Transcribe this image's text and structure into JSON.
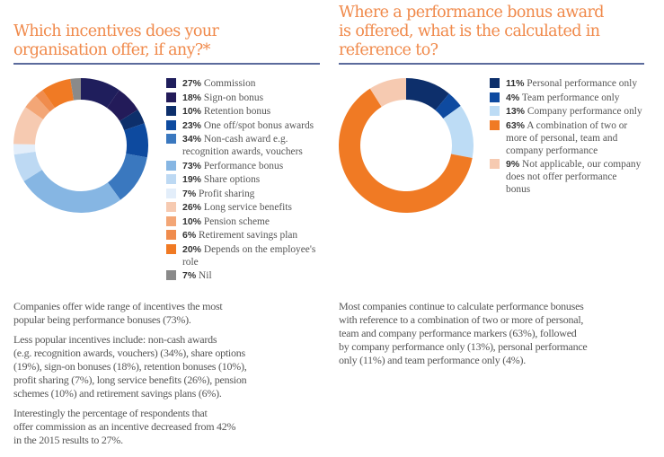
{
  "left": {
    "title_lines": [
      "Which incentives does your",
      "organisation offer, if any?*"
    ],
    "paragraphs": [
      [
        "Companies offer wide range of incentives the most",
        "popular being performance bonuses (73%)."
      ],
      [
        "Less popular incentives include: non-cash awards",
        "(e.g. recognition awards, vouchers) (34%), share options",
        "(19%), sign-on bonuses (18%), retention bonuses (10%),",
        "profit sharing (7%), long service benefits (26%), pension",
        "schemes (10%) and retirement savings plans (6%)."
      ],
      [
        "Interestingly the percentage of respondents that",
        "offer  commission as an incentive decreased from 42%",
        "in the 2015 results to 27%."
      ]
    ]
  },
  "right": {
    "title_lines": [
      "Where a performance bonus award",
      "is offered, what is the calculated in",
      "reference to?"
    ],
    "paragraphs": [
      [
        "Most companies continue to calculate performance bonuses",
        "with reference to a combination of two or more of personal,",
        "team and company performance markers (63%), followed",
        "by company performance only (13%), personal performance",
        "only (11%) and team performance only (4%)."
      ]
    ]
  },
  "chart_data": [
    {
      "type": "pie",
      "donut": true,
      "title": "Which incentives does your organisation offer, if any?*",
      "legend_position": "right",
      "slices": [
        {
          "pct": "27%",
          "label": "Commission",
          "value": 27,
          "color": "#1f1e5c"
        },
        {
          "pct": "18%",
          "label": "Sign-on bonus",
          "value": 18,
          "color": "#231b59"
        },
        {
          "pct": "10%",
          "label": "Retention bonus",
          "value": 10,
          "color": "#0d2f6b"
        },
        {
          "pct": "23%",
          "label": "One off/spot bonus awards",
          "value": 23,
          "color": "#0d4a9f"
        },
        {
          "pct": "34%",
          "label": "Non-cash award e.g. recognition awards, vouchers",
          "value": 34,
          "color": "#3a78bf"
        },
        {
          "pct": "73%",
          "label": "Performance bonus",
          "value": 73,
          "color": "#86b6e3"
        },
        {
          "pct": "19%",
          "label": "Share options",
          "value": 19,
          "color": "#bdd9f3"
        },
        {
          "pct": "7%",
          "label": "Profit sharing",
          "value": 7,
          "color": "#e3eefa"
        },
        {
          "pct": "26%",
          "label": "Long service benefits",
          "value": 26,
          "color": "#f6cab1"
        },
        {
          "pct": "10%",
          "label": "Pension scheme",
          "value": 10,
          "color": "#f3a676"
        },
        {
          "pct": "6%",
          "label": "Retirement savings plan",
          "value": 6,
          "color": "#f08c4d"
        },
        {
          "pct": "20%",
          "label": "Depends on the employee's role",
          "value": 20,
          "color": "#f07a24"
        },
        {
          "pct": "7%",
          "label": "Nil",
          "value": 7,
          "color": "#8a8a8a"
        }
      ]
    },
    {
      "type": "pie",
      "donut": true,
      "title": "Where a performance bonus award is offered, what is the calculated in reference to?",
      "legend_position": "right",
      "slices": [
        {
          "pct": "11%",
          "label": "Personal performance only",
          "value": 11,
          "color": "#0d2f6b"
        },
        {
          "pct": "4%",
          "label": "Team performance only",
          "value": 4,
          "color": "#0e4aa0"
        },
        {
          "pct": "13%",
          "label": "Company performance only",
          "value": 13,
          "color": "#bddcf5"
        },
        {
          "pct": "63%",
          "label": "A combination of two or more of personal, team and company performance",
          "value": 63,
          "color": "#f07a24"
        },
        {
          "pct": "9%",
          "label": "Not applicable, our company does not offer performance bonus",
          "value": 9,
          "color": "#f6cab1"
        }
      ]
    }
  ]
}
